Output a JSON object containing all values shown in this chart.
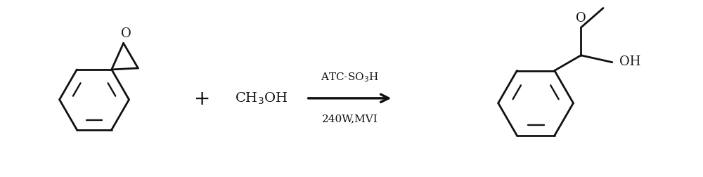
{
  "background_color": "#ffffff",
  "line_color": "#111111",
  "line_width": 2.0,
  "arrow_color": "#111111",
  "text_color": "#111111",
  "font_size_label": 13,
  "catalyst_text": "ATC-SO$_3$H",
  "condition_text": "240W,MVI",
  "methanol_text": "CH$_3$OH",
  "oh_text": "OH",
  "o_text": "O",
  "methoxy_o_text": "O"
}
